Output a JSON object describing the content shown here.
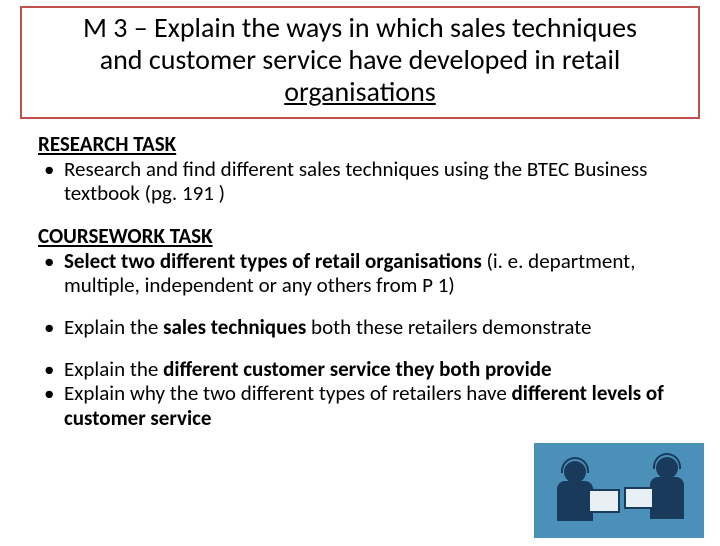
{
  "title": {
    "line1": "M 3 – Explain the ways in which sales techniques",
    "line2": "and customer service have developed in retail",
    "line3": "organisations"
  },
  "research": {
    "heading": "RESEARCH TASK",
    "item1": "Research and find different sales techniques using the BTEC Business textbook (pg. 191 )"
  },
  "coursework": {
    "heading": "COURSEWORK TASK",
    "item1_bold": "Select two different types of retail organisations",
    "item1_rest": " (i. e. department, multiple, independent or any others from P 1)",
    "item2_pre": "Explain the ",
    "item2_bold": "sales techniques",
    "item2_post": " both these retailers demonstrate",
    "item3_pre": "Explain the ",
    "item3_bold": "different customer service they both provide",
    "item4_pre": "Explain why the two different types of retailers have ",
    "item4_bold": "different levels of customer service"
  },
  "colors": {
    "title_border": "#c0504d",
    "text": "#000000",
    "image_bg": "#4a90b8",
    "image_fg": "#1a3a5c"
  }
}
